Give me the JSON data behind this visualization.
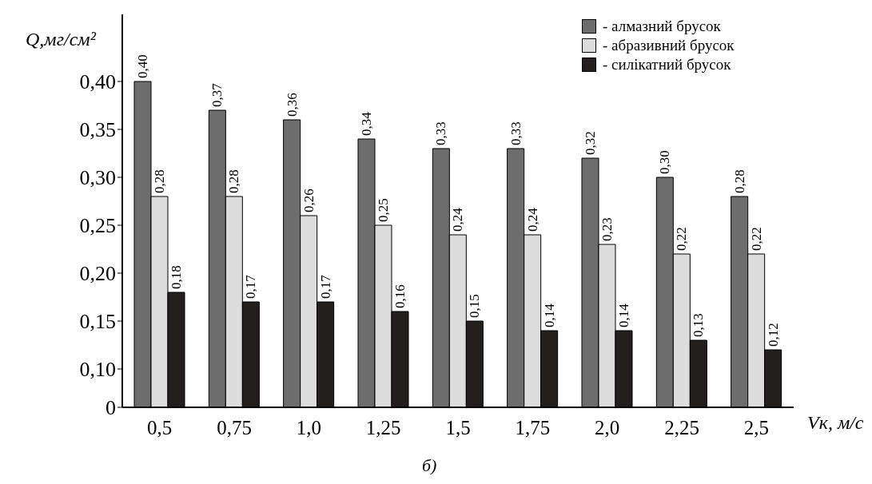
{
  "chart_data": {
    "type": "bar",
    "xlabel": "Vк, м/с",
    "ylabel": "Q,мг/см²",
    "annotations": [
      "б)"
    ],
    "categories": [
      "0,5",
      "0,75",
      "1,0",
      "1,25",
      "1,5",
      "1,75",
      "2,0",
      "2,25",
      "2,5"
    ],
    "series": [
      {
        "name": "- алмазний брусок",
        "color": "#6d6d6d",
        "values": [
          0.4,
          0.37,
          0.36,
          0.34,
          0.33,
          0.33,
          0.32,
          0.3,
          0.28
        ],
        "value_labels": [
          "0,40",
          "0,37",
          "0,36",
          "0,34",
          "0,33",
          "0,33",
          "0,32",
          "0,30",
          "0,28"
        ]
      },
      {
        "name": "- абразивний брусок",
        "color": "#dcdcdc",
        "values": [
          0.28,
          0.28,
          0.26,
          0.25,
          0.24,
          0.24,
          0.23,
          0.22,
          0.22
        ],
        "value_labels": [
          "0,28",
          "0,28",
          "0,26",
          "0,25",
          "0,24",
          "0,24",
          "0,23",
          "0,22",
          "0,22"
        ]
      },
      {
        "name": "- силікатний брусок",
        "color": "#231f1c",
        "values": [
          0.18,
          0.17,
          0.17,
          0.16,
          0.15,
          0.14,
          0.14,
          0.13,
          0.12
        ],
        "value_labels": [
          "0,18",
          "0,17",
          "0,17",
          "0,16",
          "0,15",
          "0,14",
          "0,14",
          "0,13",
          "0,12"
        ]
      }
    ],
    "ylim": [
      0.06,
      0.47
    ],
    "yticks": [
      {
        "value": 0.06,
        "label": "0"
      },
      {
        "value": 0.1,
        "label": "0,10"
      },
      {
        "value": 0.15,
        "label": "0,15"
      },
      {
        "value": 0.2,
        "label": "0,20"
      },
      {
        "value": 0.25,
        "label": "0,25"
      },
      {
        "value": 0.3,
        "label": "0,30"
      },
      {
        "value": 0.35,
        "label": "0,35"
      },
      {
        "value": 0.4,
        "label": "0,40"
      }
    ],
    "legend": "top right",
    "grid": false
  }
}
